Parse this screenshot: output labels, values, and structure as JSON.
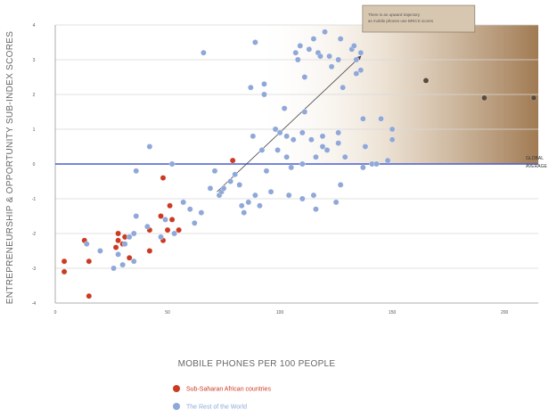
{
  "chart_data": {
    "type": "scatter",
    "title": "",
    "xlabel": "MOBILE PHONES PER 100 PEOPLE",
    "ylabel": "ENTREPRENEURSHIP & OPPORTUNITY SUB-INDEX SCORES",
    "xlim": [
      0,
      215
    ],
    "ylim": [
      -4,
      4
    ],
    "x_ticks": [
      "0",
      "50",
      "100",
      "150",
      "200"
    ],
    "y_ticks": [
      "4",
      "3",
      "2",
      "1",
      "0",
      "-1",
      "-2",
      "-3",
      "-4"
    ],
    "grid": true,
    "reference_line": {
      "y": 0,
      "label_line1": "GLOBAL",
      "label_line2": "AVERAGE",
      "color": "#4a5fcf"
    },
    "annotation": {
      "line1": "There is an upward trajectory",
      "line2": "as mobile phones use BRICS scores",
      "arrow_start": [
        72,
        -0.8
      ],
      "arrow_end": [
        136,
        3.1
      ]
    },
    "legend_position": "bottom",
    "series": [
      {
        "name": "Sub-Saharan African countries",
        "color": "#cc3a22",
        "points": [
          [
            4,
            -2.8
          ],
          [
            4,
            -3.1
          ],
          [
            13,
            -2.2
          ],
          [
            15,
            -2.8
          ],
          [
            15,
            -3.8
          ],
          [
            27,
            -2.4
          ],
          [
            28,
            -2.0
          ],
          [
            28,
            -2.2
          ],
          [
            30,
            -2.3
          ],
          [
            31,
            -2.1
          ],
          [
            33,
            -2.7
          ],
          [
            42,
            -1.9
          ],
          [
            42,
            -2.5
          ],
          [
            47,
            -1.5
          ],
          [
            48,
            -2.2
          ],
          [
            48,
            -0.4
          ],
          [
            50,
            -1.9
          ],
          [
            51,
            -1.2
          ],
          [
            52,
            -1.6
          ],
          [
            55,
            -1.9
          ],
          [
            79,
            0.1
          ]
        ]
      },
      {
        "name": "The Rest of the World",
        "color": "#8fa8d8",
        "points": [
          [
            14,
            -2.3
          ],
          [
            20,
            -2.5
          ],
          [
            26,
            -3.0
          ],
          [
            28,
            -2.6
          ],
          [
            30,
            -2.9
          ],
          [
            31,
            -2.3
          ],
          [
            33,
            -2.1
          ],
          [
            35,
            -2.8
          ],
          [
            35,
            -2.0
          ],
          [
            36,
            -1.5
          ],
          [
            36,
            -0.2
          ],
          [
            41,
            -1.8
          ],
          [
            42,
            0.5
          ],
          [
            47,
            -2.1
          ],
          [
            49,
            -1.6
          ],
          [
            52,
            0.0
          ],
          [
            53,
            -2.0
          ],
          [
            57,
            -1.1
          ],
          [
            60,
            -1.3
          ],
          [
            62,
            -1.7
          ],
          [
            65,
            -1.4
          ],
          [
            66,
            3.2
          ],
          [
            69,
            -0.7
          ],
          [
            71,
            -0.2
          ],
          [
            73,
            -0.9
          ],
          [
            74,
            -0.8
          ],
          [
            75,
            -0.7
          ],
          [
            78,
            -0.5
          ],
          [
            80,
            -0.3
          ],
          [
            82,
            -0.6
          ],
          [
            83,
            -1.2
          ],
          [
            84,
            -1.4
          ],
          [
            86,
            -1.1
          ],
          [
            87,
            2.2
          ],
          [
            88,
            0.8
          ],
          [
            89,
            3.5
          ],
          [
            89,
            -0.9
          ],
          [
            91,
            -1.2
          ],
          [
            92,
            0.4
          ],
          [
            93,
            2.0
          ],
          [
            93,
            2.3
          ],
          [
            94,
            -0.2
          ],
          [
            96,
            -0.8
          ],
          [
            98,
            1.0
          ],
          [
            99,
            0.4
          ],
          [
            100,
            0.9
          ],
          [
            102,
            1.6
          ],
          [
            103,
            0.8
          ],
          [
            103,
            0.2
          ],
          [
            104,
            -0.9
          ],
          [
            105,
            -0.1
          ],
          [
            106,
            0.7
          ],
          [
            107,
            3.2
          ],
          [
            108,
            3.0
          ],
          [
            109,
            3.4
          ],
          [
            110,
            0.9
          ],
          [
            110,
            0.0
          ],
          [
            110,
            -1.0
          ],
          [
            111,
            2.5
          ],
          [
            111,
            1.5
          ],
          [
            113,
            3.3
          ],
          [
            114,
            0.7
          ],
          [
            115,
            3.6
          ],
          [
            115,
            -0.9
          ],
          [
            116,
            0.2
          ],
          [
            116,
            -1.3
          ],
          [
            117,
            3.2
          ],
          [
            118,
            3.1
          ],
          [
            119,
            0.8
          ],
          [
            119,
            0.5
          ],
          [
            120,
            3.8
          ],
          [
            121,
            0.4
          ],
          [
            122,
            3.1
          ],
          [
            123,
            2.8
          ],
          [
            125,
            -1.1
          ],
          [
            126,
            0.6
          ],
          [
            126,
            0.9
          ],
          [
            126,
            3.0
          ],
          [
            127,
            3.6
          ],
          [
            127,
            -0.6
          ],
          [
            128,
            2.2
          ],
          [
            129,
            0.2
          ],
          [
            132,
            3.3
          ],
          [
            133,
            3.4
          ],
          [
            134,
            3.0
          ],
          [
            134,
            2.6
          ],
          [
            136,
            2.7
          ],
          [
            136,
            3.2
          ],
          [
            137,
            1.3
          ],
          [
            137,
            -0.1
          ],
          [
            138,
            0.5
          ],
          [
            141,
            0.0
          ],
          [
            143,
            0.0
          ],
          [
            145,
            1.3
          ],
          [
            148,
            0.1
          ],
          [
            150,
            1.0
          ],
          [
            150,
            0.7
          ]
        ]
      },
      {
        "name": "",
        "color": "#5a4a3a",
        "points": [
          [
            165,
            2.4
          ],
          [
            191,
            1.9
          ],
          [
            213,
            1.9
          ]
        ]
      }
    ]
  }
}
